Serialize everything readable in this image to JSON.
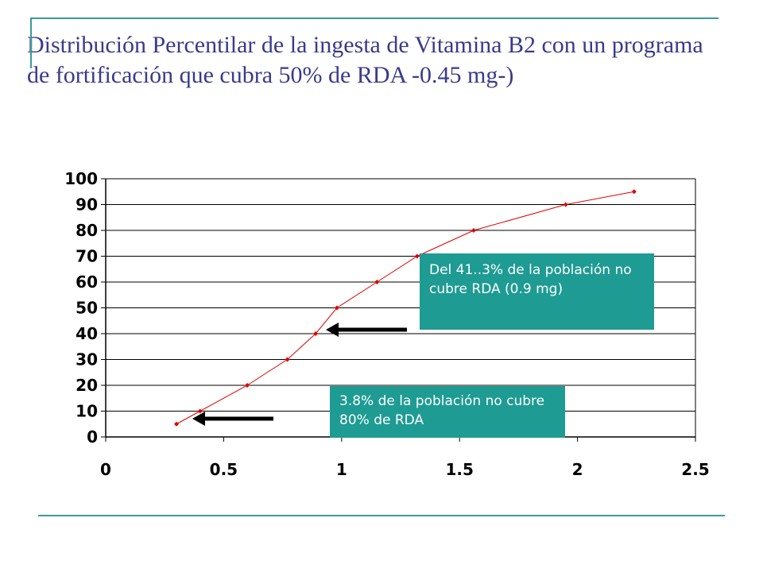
{
  "slide": {
    "title": "Distribución Percentilar de la ingesta de  Vitamina B2 con un programa de fortificación que cubra 50% de RDA -0.45 mg-)"
  },
  "colors": {
    "title": "#3a3a8c",
    "accent_line": "#3a9a9a",
    "series": "#e00000",
    "callout_bg": "#1e9b93",
    "arrow": "#000000"
  },
  "callouts": {
    "upper": "Del 41..3% de la población no cubre RDA (0.9 mg)",
    "lower": "3.8% de la población no cubre 80% de RDA"
  },
  "chart_data": {
    "type": "line",
    "title": "",
    "xlabel": "",
    "ylabel": "",
    "xlim": [
      0,
      2.5
    ],
    "ylim": [
      0,
      100
    ],
    "x_ticks": [
      "0",
      "0.5",
      "1",
      "1.5",
      "2",
      "2.5"
    ],
    "y_ticks": [
      "0",
      "10",
      "20",
      "30",
      "40",
      "50",
      "60",
      "70",
      "80",
      "90",
      "100"
    ],
    "grid": "horizontal",
    "legend": "none",
    "series": [
      {
        "x": [
          0.3,
          0.4,
          0.6,
          0.77,
          0.89,
          0.98,
          1.15,
          1.32,
          1.56,
          1.95,
          2.24
        ],
        "y": [
          5,
          10,
          20,
          30,
          40,
          50,
          60,
          70,
          80,
          90,
          95
        ]
      }
    ]
  }
}
